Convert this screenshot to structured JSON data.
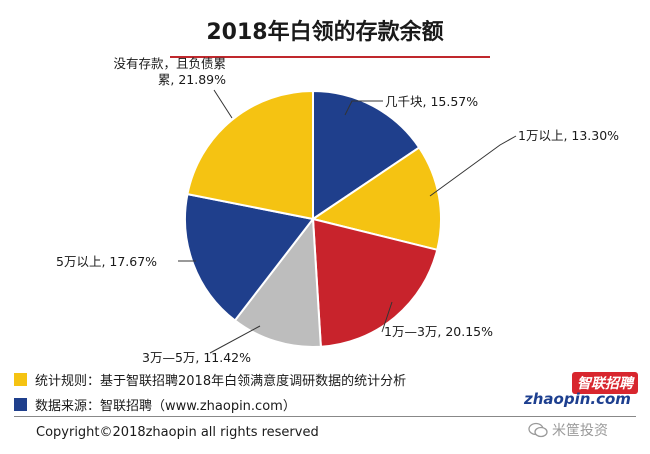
{
  "chart_data": {
    "type": "pie",
    "title": "2018年白领的存款余额",
    "slices": [
      {
        "label": "几千块",
        "display": "几千块, 15.57%",
        "value": 15.57,
        "color": "#1f3f8c"
      },
      {
        "label": "1万以上",
        "display": "1万以上, 13.30%",
        "value": 13.3,
        "color": "#f5c312"
      },
      {
        "label": "1万—3万",
        "display": "1万—3万, 20.15%",
        "value": 20.15,
        "color": "#c8232c"
      },
      {
        "label": "3万—5万",
        "display": "3万—5万, 11.42%",
        "value": 11.42,
        "color": "#bdbdbd"
      },
      {
        "label": "5万以上",
        "display": "5万以上, 17.67%",
        "value": 17.67,
        "color": "#1f3f8c"
      },
      {
        "label": "没有存款，且负债累累",
        "display_lines": [
          "没有存款，且负债累",
          "累, 21.89%"
        ],
        "value": 21.89,
        "color": "#f5c312"
      }
    ]
  },
  "legend": [
    {
      "text": "统计规则：基于智联招聘2018年白领满意度调研数据的统计分析",
      "color": "#f5c312"
    },
    {
      "text": "数据来源：智联招聘（www.zhaopin.com）",
      "color": "#1f3f8c"
    }
  ],
  "logo": {
    "cn": "智联招聘",
    "en": "zhaopin.com"
  },
  "copyright": "Copyright©2018zhaopin all rights reserved",
  "watermark": "米筐投资"
}
